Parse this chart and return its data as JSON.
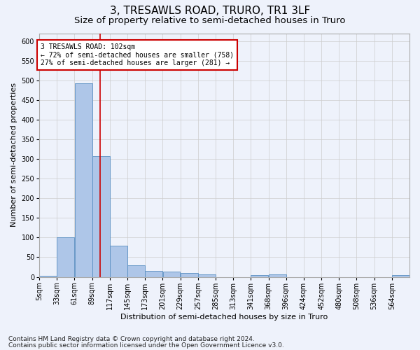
{
  "title": "3, TRESAWLS ROAD, TRURO, TR1 3LF",
  "subtitle": "Size of property relative to semi-detached houses in Truro",
  "xlabel": "Distribution of semi-detached houses by size in Truro",
  "ylabel": "Number of semi-detached properties",
  "bin_labels": [
    "5sqm",
    "33sqm",
    "61sqm",
    "89sqm",
    "117sqm",
    "145sqm",
    "173sqm",
    "201sqm",
    "229sqm",
    "257sqm",
    "285sqm",
    "313sqm",
    "341sqm",
    "368sqm",
    "396sqm",
    "424sqm",
    "452sqm",
    "480sqm",
    "508sqm",
    "536sqm",
    "564sqm"
  ],
  "bin_values": [
    3,
    100,
    493,
    307,
    80,
    29,
    15,
    14,
    9,
    7,
    0,
    0,
    5,
    6,
    0,
    0,
    0,
    0,
    0,
    0,
    4
  ],
  "bar_color": "#aec6e8",
  "bar_edge_color": "#5a8fc2",
  "property_line_x": 102,
  "annotation_text": "3 TRESAWLS ROAD: 102sqm\n← 72% of semi-detached houses are smaller (758)\n27% of semi-detached houses are larger (281) →",
  "annotation_box_color": "#ffffff",
  "annotation_box_edge": "#cc0000",
  "vline_color": "#cc0000",
  "footer_line1": "Contains HM Land Registry data © Crown copyright and database right 2024.",
  "footer_line2": "Contains public sector information licensed under the Open Government Licence v3.0.",
  "ylim": [
    0,
    620
  ],
  "background_color": "#eef2fb",
  "grid_color": "#cccccc",
  "title_fontsize": 11,
  "subtitle_fontsize": 9.5,
  "axis_label_fontsize": 8,
  "tick_fontsize": 7,
  "annotation_fontsize": 7,
  "footer_fontsize": 6.5
}
